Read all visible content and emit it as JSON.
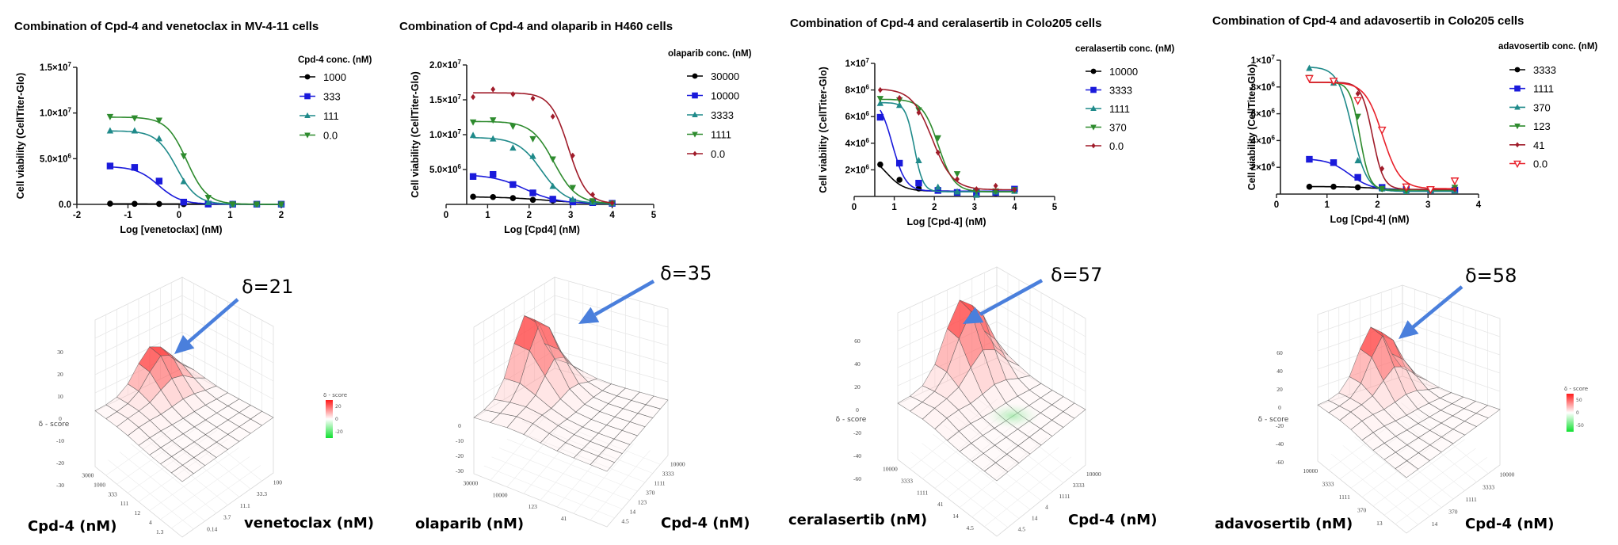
{
  "chart_data": [
    {
      "type": "line",
      "title": "Combination of Cpd-4 and venetoclax in MV-4-11 cells",
      "xlabel": "Log [venetoclax] (nM)",
      "ylabel": "Cell viability (CellTiter-Glo)",
      "xlim": [
        -2,
        2
      ],
      "ylim": [
        0,
        15000000
      ],
      "xticks": [
        -2,
        -1,
        0,
        1,
        2
      ],
      "xtick_labels": [
        "-2",
        "-1",
        "0",
        "1",
        "2"
      ],
      "yticks": [
        0,
        5000000,
        10000000,
        15000000
      ],
      "ytick_labels": [
        [
          "0.0",
          ""
        ],
        [
          "5.0×10",
          "6"
        ],
        [
          "1.0×10",
          "7"
        ],
        [
          "1.5×10",
          "7"
        ]
      ],
      "legend_title": "Cpd-4 conc. (nM)",
      "legend_position": "right",
      "x": [
        -1.35,
        -0.87,
        -0.39,
        0.09,
        0.57,
        1.05,
        1.52,
        2.0
      ],
      "series": [
        {
          "name": "1000",
          "color": "#000000",
          "marker": "circle",
          "values": [
            80000,
            60000,
            50000,
            30000,
            20000,
            10000,
            10000,
            10000
          ],
          "fit": {
            "top": 60000,
            "bottom": 10000,
            "ic50": 0.5,
            "hill": 1
          }
        },
        {
          "name": "333",
          "color": "#1a1adb",
          "marker": "square",
          "values": [
            4200000,
            4050000,
            2550000,
            250000,
            30000,
            20000,
            20000,
            20000
          ],
          "fit": {
            "top": 4150000,
            "bottom": 20000,
            "ic50": -0.4,
            "hill": 2.0
          }
        },
        {
          "name": "111",
          "color": "#1f8a8a",
          "marker": "triangle-up",
          "values": [
            8050000,
            8050000,
            7200000,
            2500000,
            200000,
            20000,
            20000,
            20000
          ],
          "fit": {
            "top": 8050000,
            "bottom": 10000,
            "ic50": -0.05,
            "hill": 2.2
          }
        },
        {
          "name": "0.0",
          "color": "#2e8b2e",
          "marker": "triangle-down",
          "values": [
            9600000,
            9450000,
            9200000,
            5300000,
            750000,
            30000,
            20000,
            20000
          ],
          "fit": {
            "top": 9550000,
            "bottom": 10000,
            "ic50": 0.15,
            "hill": 2.2
          }
        }
      ]
    },
    {
      "type": "line",
      "title": "Combination of Cpd-4 and olaparib in H460 cells",
      "xlabel": "Log [Cpd4] (nM)",
      "ylabel": "Cell viability (CellTiter-Glo)",
      "xlim": [
        0,
        5
      ],
      "ylim": [
        0,
        20000000
      ],
      "xticks": [
        0,
        1,
        2,
        3,
        4,
        5
      ],
      "xtick_labels": [
        "0",
        "1",
        "2",
        "3",
        "4",
        "5"
      ],
      "yticks": [
        5000000,
        10000000,
        15000000,
        20000000
      ],
      "ytick_labels": [
        [
          "5.0×10",
          "6"
        ],
        [
          "1.0×10",
          "7"
        ],
        [
          "1.5×10",
          "7"
        ],
        [
          "2.0×10",
          "7"
        ]
      ],
      "legend_title": "olaparib conc. (nM)",
      "legend_position": "right",
      "x": [
        0.65,
        1.13,
        1.61,
        2.09,
        2.57,
        3.05,
        3.53,
        4.0
      ],
      "series": [
        {
          "name": "30000",
          "color": "#000000",
          "marker": "circle",
          "values": [
            1100000,
            1050000,
            900000,
            650000,
            550000,
            350000,
            250000,
            150000
          ],
          "fit": {
            "top": 1100000,
            "bottom": 100000,
            "ic50": 2.4,
            "hill": 0.8
          }
        },
        {
          "name": "10000",
          "color": "#1a1adb",
          "marker": "square",
          "values": [
            4000000,
            4300000,
            2850000,
            1650000,
            750000,
            350000,
            250000,
            150000
          ],
          "fit": {
            "top": 4300000,
            "bottom": 100000,
            "ic50": 1.9,
            "hill": 1.1
          }
        },
        {
          "name": "3333",
          "color": "#1f8a8a",
          "marker": "triangle-up",
          "values": [
            9900000,
            9400000,
            8100000,
            6900000,
            2600000,
            700000,
            300000,
            150000
          ],
          "fit": {
            "top": 9600000,
            "bottom": 100000,
            "ic50": 2.3,
            "hill": 1.5
          }
        },
        {
          "name": "1111",
          "color": "#2e8b2e",
          "marker": "triangle-down",
          "values": [
            11800000,
            12100000,
            11200000,
            9400000,
            6500000,
            2400000,
            500000,
            150000
          ],
          "fit": {
            "top": 11900000,
            "bottom": 100000,
            "ic50": 2.6,
            "hill": 1.6
          }
        },
        {
          "name": "0.0",
          "color": "#a01c2a",
          "marker": "diamond",
          "values": [
            15400000,
            16500000,
            15800000,
            15200000,
            12600000,
            7000000,
            1400000,
            200000
          ],
          "fit": {
            "top": 16000000,
            "bottom": 100000,
            "ic50": 2.95,
            "hill": 2.0
          }
        }
      ]
    },
    {
      "type": "line",
      "title": "Combination of Cpd-4 and ceralasertib in Colo205 cells",
      "xlabel": "Log [Cpd-4] (nM)",
      "ylabel": "Cell viability (CellTiter-Glo)",
      "xlim": [
        0,
        5
      ],
      "ylim": [
        0,
        10000000
      ],
      "xticks": [
        0,
        1,
        2,
        3,
        4,
        5
      ],
      "xtick_labels": [
        "0",
        "1",
        "2",
        "3",
        "4",
        "5"
      ],
      "yticks": [
        2000000,
        4000000,
        6000000,
        8000000,
        10000000
      ],
      "ytick_labels": [
        [
          "2×10",
          "6"
        ],
        [
          "4×10",
          "6"
        ],
        [
          "6×10",
          "6"
        ],
        [
          "8×10",
          "6"
        ],
        [
          "1×10",
          "7"
        ]
      ],
      "legend_title": "ceralasertib conc. (nM)",
      "legend_position": "right",
      "x": [
        0.65,
        1.13,
        1.61,
        2.09,
        2.57,
        3.05,
        3.53,
        4.0
      ],
      "series": [
        {
          "name": "10000",
          "color": "#000000",
          "marker": "circle",
          "values": [
            2400000,
            1250000,
            600000,
            550000,
            300000,
            300000,
            250000,
            450000
          ],
          "fit": {
            "top": 3200000,
            "bottom": 400000,
            "ic50": 0.8,
            "hill": 2.0
          }
        },
        {
          "name": "3333",
          "color": "#1a1adb",
          "marker": "square",
          "values": [
            5950000,
            2500000,
            1000000,
            450000,
            300000,
            300000,
            300000,
            550000
          ],
          "fit": {
            "top": 7500000,
            "bottom": 400000,
            "ic50": 0.95,
            "hill": 2.6
          }
        },
        {
          "name": "1111",
          "color": "#1f8a8a",
          "marker": "triangle-up",
          "values": [
            7000000,
            6850000,
            2700000,
            700000,
            350000,
            100000,
            350000,
            400000
          ],
          "fit": {
            "top": 7050000,
            "bottom": 350000,
            "ic50": 1.5,
            "hill": 4.0
          }
        },
        {
          "name": "370",
          "color": "#2e8b2e",
          "marker": "triangle-down",
          "values": [
            7350000,
            7250000,
            6500000,
            4400000,
            1700000,
            400000,
            400000,
            500000
          ],
          "fit": {
            "top": 7300000,
            "bottom": 350000,
            "ic50": 2.1,
            "hill": 2.2
          }
        },
        {
          "name": "0.0",
          "color": "#a01c2a",
          "marker": "diamond",
          "values": [
            8000000,
            7400000,
            6300000,
            3300000,
            1300000,
            550000,
            800000,
            500000
          ],
          "fit": {
            "top": 8100000,
            "bottom": 500000,
            "ic50": 1.95,
            "hill": 1.7
          }
        }
      ]
    },
    {
      "type": "line",
      "title": "Combination of Cpd-4 and adavosertib in Colo205 cells",
      "xlabel": "Log [Cpd-4] (nM)",
      "ylabel": "Cell viability (CellTiter-Glo)",
      "xlim": [
        0,
        4
      ],
      "ylim": [
        0,
        10000000
      ],
      "xticks": [
        0,
        1,
        2,
        3,
        4
      ],
      "xtick_labels": [
        "0",
        "1",
        "2",
        "3",
        "4"
      ],
      "yticks": [
        2000000,
        4000000,
        6000000,
        8000000,
        10000000
      ],
      "ytick_labels": [
        [
          "2×10",
          "6"
        ],
        [
          "4×10",
          "6"
        ],
        [
          "6×10",
          "6"
        ],
        [
          "8×10",
          "6"
        ],
        [
          "1×10",
          "7"
        ]
      ],
      "legend_title": "adavosertib conc. (nM)",
      "legend_position": "right",
      "x": [
        0.65,
        1.13,
        1.61,
        2.09,
        2.57,
        3.05,
        3.53
      ],
      "series": [
        {
          "name": "3333",
          "color": "#000000",
          "marker": "circle",
          "values": [
            550000,
            550000,
            500000,
            400000,
            350000,
            300000,
            300000
          ],
          "fit": {
            "top": 560000,
            "bottom": 300000,
            "ic50": 2.0,
            "hill": 1.5
          }
        },
        {
          "name": "1111",
          "color": "#1a1adb",
          "marker": "square",
          "values": [
            2600000,
            2350000,
            1250000,
            500000,
            350000,
            300000,
            300000
          ],
          "fit": {
            "top": 2650000,
            "bottom": 300000,
            "ic50": 1.45,
            "hill": 2.0
          }
        },
        {
          "name": "370",
          "color": "#1f8a8a",
          "marker": "triangle-up",
          "values": [
            9400000,
            8300000,
            2500000,
            400000,
            200000,
            250000,
            250000
          ],
          "fit": {
            "top": 9500000,
            "bottom": 200000,
            "ic50": 1.5,
            "hill": 3.0
          }
        },
        {
          "name": "123",
          "color": "#2e8b2e",
          "marker": "triangle-down",
          "values": [
            8700000,
            8400000,
            5800000,
            400000,
            250000,
            300000,
            500000
          ],
          "fit": {
            "top": 8350000,
            "bottom": 300000,
            "ic50": 1.65,
            "hill": 4.5
          }
        },
        {
          "name": "41",
          "color": "#a01c2a",
          "marker": "diamond",
          "values": [
            8600000,
            8400000,
            7500000,
            1900000,
            400000,
            350000,
            350000
          ],
          "fit": {
            "top": 8350000,
            "bottom": 350000,
            "ic50": 1.9,
            "hill": 4.0
          }
        },
        {
          "name": "0.0",
          "color": "#e8202a",
          "marker": "triangle-down-open",
          "values": [
            8650000,
            8450000,
            7000000,
            4800000,
            550000,
            350000,
            1000000
          ],
          "fit": {
            "top": 8350000,
            "bottom": 400000,
            "ic50": 2.1,
            "hill": 2.5
          }
        }
      ]
    }
  ],
  "synergy_panels": [
    {
      "delta_label": "δ=21",
      "row_axis_label": "Cpd-4 (nM)",
      "col_axis_label": "venetoclax (nM)",
      "z_label": "δ - score",
      "z_ticks": [
        "30",
        "20",
        "10",
        "0",
        "-10",
        "-20",
        "-30"
      ],
      "row_ticks": [
        "3000",
        "1000",
        "333",
        "111",
        "12",
        "4",
        "1.3"
      ],
      "col_ticks": [
        "100",
        "33.3",
        "11.1",
        "3.7",
        "0.14"
      ],
      "colorbar": {
        "title": "δ - score",
        "ticks": [
          "20",
          "0",
          "-20"
        ]
      },
      "peak_value": 21
    },
    {
      "delta_label": "δ=35",
      "row_axis_label": "olaparib (nM)",
      "col_axis_label": "Cpd-4 (nM)",
      "z_label": "",
      "z_ticks": [
        "0",
        "-10",
        "-20",
        "-30"
      ],
      "row_ticks": [
        "30000",
        "10000",
        "123",
        "41"
      ],
      "col_ticks": [
        "10000",
        "3333",
        "1111",
        "370",
        "123",
        "14",
        "4.5"
      ],
      "colorbar": null,
      "peak_value": 35
    },
    {
      "delta_label": "δ=57",
      "row_axis_label": "ceralasertib (nM)",
      "col_axis_label": "Cpd-4 (nM)",
      "z_label": "δ - score",
      "z_ticks": [
        "60",
        "40",
        "20",
        "0",
        "-20",
        "-40",
        "-60"
      ],
      "row_ticks": [
        "10000",
        "3333",
        "1111",
        "41",
        "14",
        "4.5"
      ],
      "col_ticks": [
        "10000",
        "3333",
        "1111",
        "4",
        "14",
        "4.5"
      ],
      "colorbar": null,
      "peak_value": 57
    },
    {
      "delta_label": "δ=58",
      "row_axis_label": "adavosertib (nM)",
      "col_axis_label": "Cpd-4 (nM)",
      "z_label": "δ - score",
      "z_ticks": [
        "60",
        "40",
        "20",
        "0",
        "-20",
        "-40",
        "-60"
      ],
      "row_ticks": [
        "10000",
        "3333",
        "1111",
        "370",
        "13"
      ],
      "col_ticks": [
        "10000",
        "3333",
        "1111",
        "370",
        "14"
      ],
      "colorbar": {
        "title": "δ - score",
        "ticks": [
          "50",
          "0",
          "-50"
        ]
      },
      "peak_value": 58
    }
  ],
  "colors": {
    "arrow": "#4a7fdc",
    "synergy_positive": "#ff2020",
    "synergy_negative": "#20e040"
  }
}
